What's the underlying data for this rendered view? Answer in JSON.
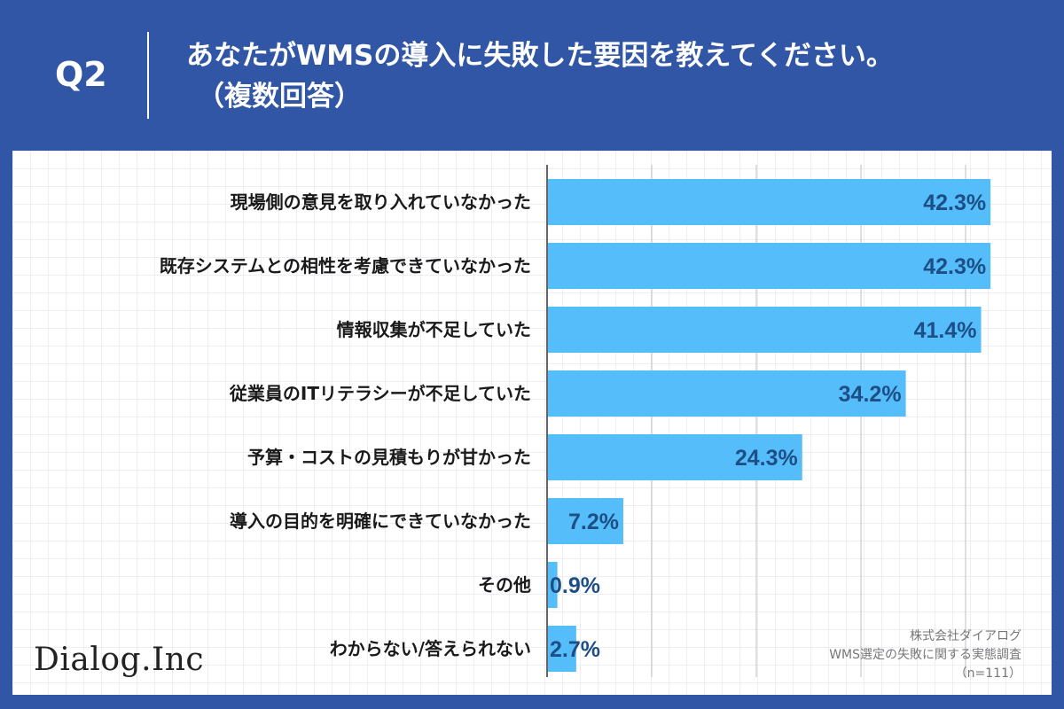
{
  "header": {
    "question_no": "Q2",
    "title": "あなたがWMSの導入に失敗した要因を教えてください。",
    "subtitle": "（複数回答）"
  },
  "chart_data": {
    "type": "bar",
    "orientation": "horizontal",
    "categories": [
      "現場側の意見を取り入れていなかった",
      "既存システムとの相性を考慮できていなかった",
      "情報収集が不足していた",
      "従業員のITリテラシーが不足していた",
      "予算・コストの見積もりが甘かった",
      "導入の目的を明確にできていなかった",
      "その他",
      "わからない/答えられない"
    ],
    "values": [
      42.3,
      42.3,
      41.4,
      34.2,
      24.3,
      7.2,
      0.9,
      2.7
    ],
    "value_labels": [
      "42.3%",
      "42.3%",
      "41.4%",
      "34.2%",
      "24.3%",
      "7.2%",
      "0.9%",
      "2.7%"
    ],
    "xlim": [
      0,
      50
    ],
    "grid": true,
    "bar_color": "#55bdfa",
    "label_color": "#1d4f86"
  },
  "footer": {
    "logo": "Dialog.Inc",
    "credit_company": "株式会社ダイアログ",
    "credit_survey": "WMS選定の失敗に関する実態調査",
    "credit_n": "（n=111）"
  },
  "colors": {
    "background": "#3156a5",
    "panel": "#ffffff"
  }
}
